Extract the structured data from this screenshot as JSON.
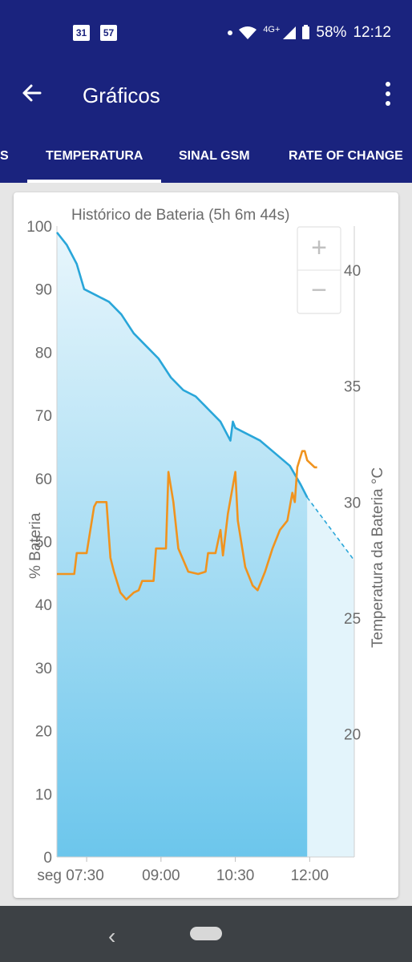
{
  "status_bar": {
    "calendar_day": "31",
    "notification_count": "57",
    "network_type": "4G+",
    "battery_percent": "58%",
    "time": "12:12",
    "icons": [
      "calendar-icon",
      "notification-icon",
      "dot-icon",
      "wifi-icon",
      "signal-icon",
      "battery-icon"
    ]
  },
  "app_bar": {
    "title": "Gráficos",
    "back_icon": "arrow-left-icon",
    "menu_icon": "more-vert-icon"
  },
  "tabs": [
    {
      "label": "S",
      "active": false
    },
    {
      "label": "TEMPERATURA",
      "active": true
    },
    {
      "label": "SINAL GSM",
      "active": false
    },
    {
      "label": "RATE OF CHANGE",
      "active": false
    }
  ],
  "zoom": {
    "in_label": "+",
    "out_label": "−"
  },
  "chart_data": {
    "type": "area",
    "title": "Histórico de Bateria (5h 6m 44s)",
    "ylabel": "% Bateria",
    "y2label": "Temperatura da Bateria °C",
    "x_ticks": [
      "seg 07:30",
      "09:00",
      "10:30",
      "12:00"
    ],
    "x_tick_hours": [
      7.5,
      9.0,
      10.5,
      12.0
    ],
    "xlim_hours": [
      6.9,
      12.9
    ],
    "ylim": [
      0,
      100
    ],
    "y_ticks": [
      0,
      10,
      20,
      30,
      40,
      50,
      60,
      70,
      80,
      90,
      100
    ],
    "y2lim": [
      14.7,
      41.9
    ],
    "y2_ticks": [
      20,
      25,
      30,
      35,
      40
    ],
    "colors": {
      "battery": "#29a6d9",
      "temperature": "#f0931e",
      "fill_top": "#e8f6fc",
      "fill_bottom": "#6cc6ec",
      "projection_fill": "#e3f4fb"
    },
    "series": [
      {
        "kind": "battery",
        "x": [
          6.9,
          7.1,
          7.3,
          7.45,
          7.7,
          7.95,
          8.2,
          8.45,
          8.7,
          8.95,
          9.2,
          9.45,
          9.7,
          9.95,
          10.2,
          10.4,
          10.45,
          10.5,
          10.75,
          11.0,
          11.3,
          11.6,
          11.82,
          11.95
        ],
        "y": [
          99.0,
          97.0,
          94.0,
          90.0,
          89.0,
          88.0,
          86.0,
          83.0,
          81.0,
          79.0,
          76.0,
          74.0,
          73.0,
          71.0,
          69.0,
          66.0,
          69.0,
          68.0,
          67.0,
          66.0,
          64.0,
          62.0,
          59.0,
          57.0
        ]
      },
      {
        "kind": "battery_projection",
        "x": [
          11.95,
          12.9
        ],
        "y": [
          57.0,
          47.0
        ]
      },
      {
        "kind": "temperature",
        "x": [
          6.9,
          7.25,
          7.3,
          7.5,
          7.65,
          7.7,
          7.9,
          7.98,
          8.05,
          8.18,
          8.3,
          8.45,
          8.55,
          8.62,
          8.85,
          8.9,
          9.1,
          9.15,
          9.25,
          9.35,
          9.55,
          9.75,
          9.9,
          9.95,
          10.1,
          10.2,
          10.25,
          10.35,
          10.5,
          10.55,
          10.7,
          10.85,
          10.95,
          11.1,
          11.25,
          11.4,
          11.55,
          11.65,
          11.7,
          11.75,
          11.85,
          11.9,
          11.95,
          12.1,
          12.15
        ],
        "y": [
          26.9,
          26.9,
          27.8,
          27.8,
          29.8,
          30.0,
          30.0,
          27.6,
          27.0,
          26.1,
          25.8,
          26.1,
          26.2,
          26.6,
          26.6,
          28.0,
          28.0,
          31.3,
          30.0,
          28.0,
          27.0,
          26.9,
          27.0,
          27.8,
          27.8,
          28.8,
          27.7,
          29.5,
          31.3,
          29.2,
          27.2,
          26.4,
          26.2,
          27.0,
          28.0,
          28.8,
          29.2,
          30.4,
          30.0,
          31.5,
          32.2,
          32.2,
          31.8,
          31.5,
          31.5
        ]
      }
    ]
  }
}
